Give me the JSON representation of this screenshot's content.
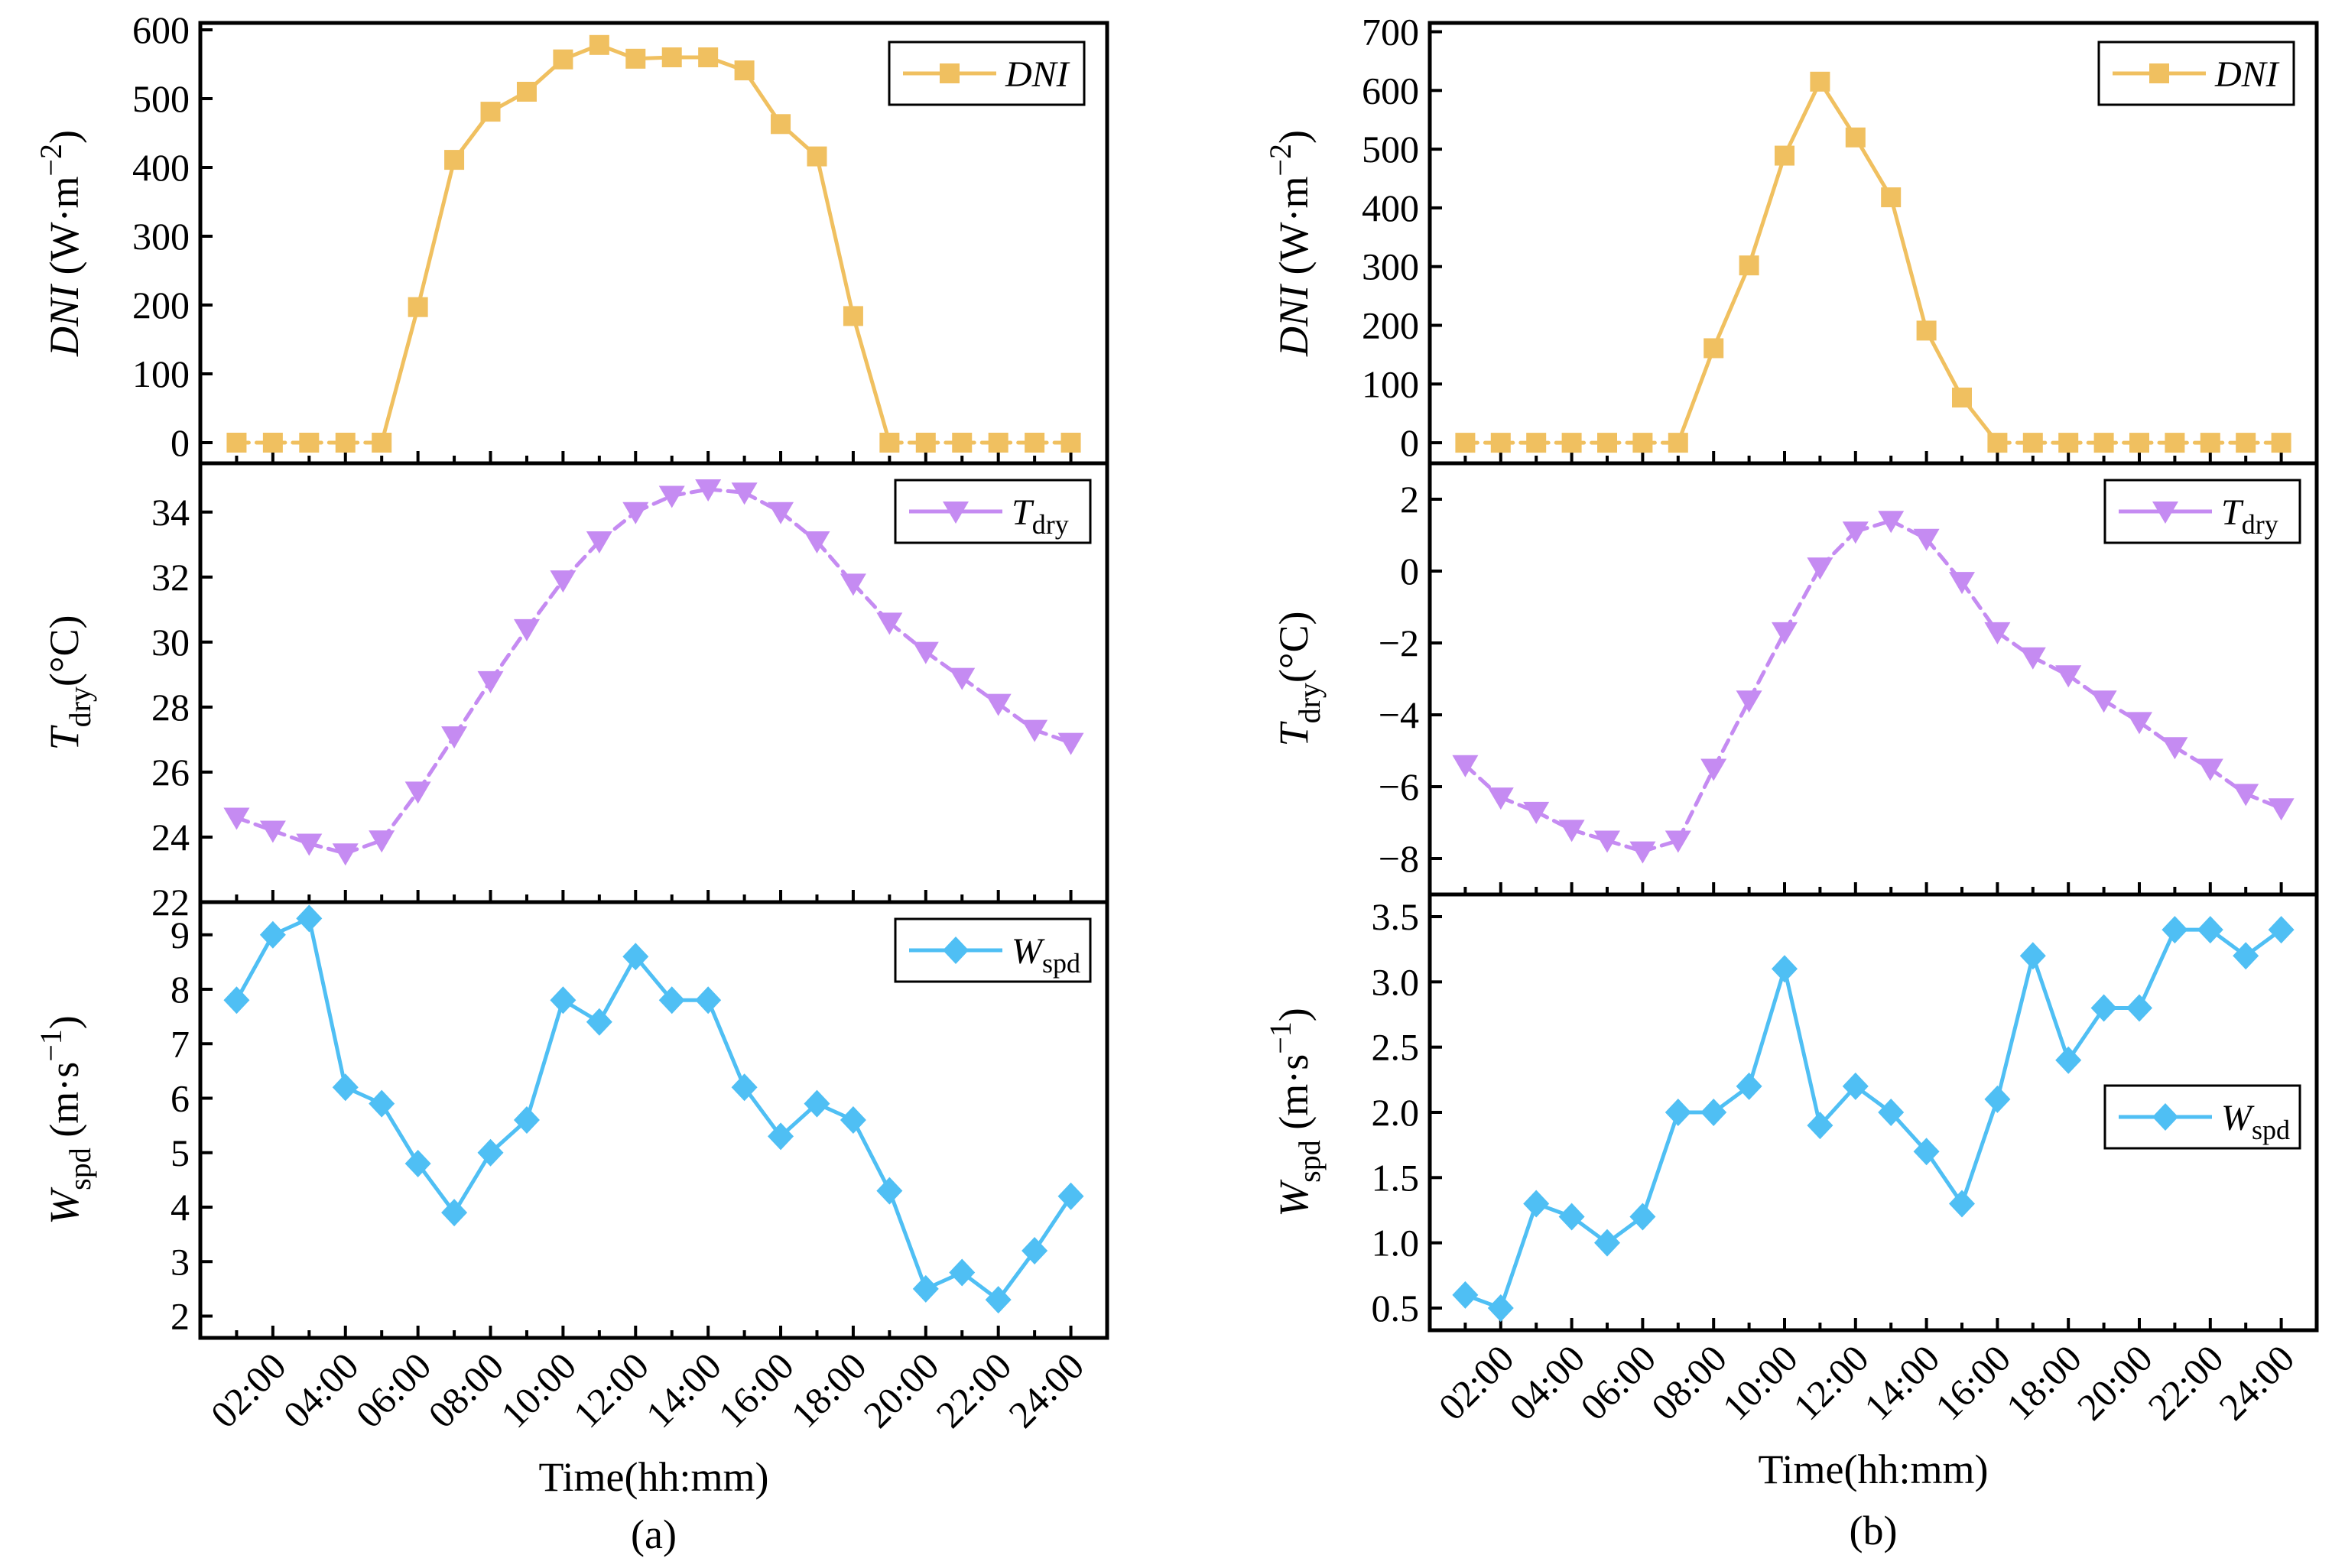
{
  "figure": {
    "x_label": "Time(hh:mm)",
    "x_tick_labels": [
      "02:00",
      "04:00",
      "06:00",
      "08:00",
      "10:00",
      "12:00",
      "14:00",
      "16:00",
      "18:00",
      "20:00",
      "22:00",
      "24:00"
    ]
  },
  "colors": {
    "dni": "#F0C060",
    "tdry": "#C58BF2",
    "wspd": "#4FBFF4"
  },
  "chart_data": [
    {
      "caption": "(a)",
      "type": "line",
      "x": [
        1,
        2,
        3,
        4,
        5,
        6,
        7,
        8,
        9,
        10,
        11,
        12,
        13,
        14,
        15,
        16,
        17,
        18,
        19,
        20,
        21,
        22,
        23,
        24
      ],
      "xlim": [
        0,
        25
      ],
      "panels": [
        {
          "key": "dni",
          "ylabel": "DNI (W·m−2)",
          "ylim": [
            -30,
            610
          ],
          "yticks": [
            0,
            100,
            200,
            300,
            400,
            500,
            600
          ],
          "legend": "DNI",
          "legend_position": "top-right",
          "marker": "square",
          "values": [
            0,
            0,
            0,
            0,
            0,
            197,
            411,
            481,
            510,
            557,
            578,
            558,
            560,
            560,
            541,
            463,
            416,
            184,
            0,
            0,
            0,
            0,
            0,
            0
          ]
        },
        {
          "key": "tdry",
          "ylabel": "Tdry(°C)",
          "ylim": [
            22,
            35.5
          ],
          "yticks": [
            22,
            24,
            26,
            28,
            30,
            32,
            34
          ],
          "legend": "Tdry",
          "legend_position": "top-right",
          "marker": "triangle-down",
          "values": [
            24.6,
            24.2,
            23.8,
            23.5,
            23.9,
            25.4,
            27.1,
            28.8,
            30.4,
            31.9,
            33.1,
            34.0,
            34.5,
            34.7,
            34.6,
            34.0,
            33.1,
            31.8,
            30.6,
            29.7,
            28.9,
            28.1,
            27.3,
            26.9
          ]
        },
        {
          "key": "wspd",
          "ylabel": "Wspd (m·s−1)",
          "ylim": [
            1.6,
            9.6
          ],
          "yticks": [
            2,
            3,
            4,
            5,
            6,
            7,
            8,
            9
          ],
          "legend": "Wspd",
          "legend_position": "top-right",
          "marker": "diamond",
          "values": [
            7.8,
            9.0,
            9.3,
            6.2,
            5.9,
            4.8,
            3.9,
            5.0,
            5.6,
            7.8,
            7.4,
            8.6,
            7.8,
            7.8,
            6.2,
            5.3,
            5.9,
            5.6,
            4.3,
            2.5,
            2.8,
            2.3,
            3.2,
            4.2
          ]
        }
      ]
    },
    {
      "caption": "(b)",
      "type": "line",
      "x": [
        1,
        2,
        3,
        4,
        5,
        6,
        7,
        8,
        9,
        10,
        11,
        12,
        13,
        14,
        15,
        16,
        17,
        18,
        19,
        20,
        21,
        22,
        23,
        24
      ],
      "xlim": [
        0,
        25
      ],
      "panels": [
        {
          "key": "dni",
          "ylabel": "DNI (W·m−2)",
          "ylim": [
            -35,
            715
          ],
          "yticks": [
            0,
            100,
            200,
            300,
            400,
            500,
            600,
            700
          ],
          "legend": "DNI",
          "legend_position": "top-right",
          "marker": "square",
          "values": [
            0,
            0,
            0,
            0,
            0,
            0,
            0,
            161,
            302,
            489,
            615,
            520,
            418,
            191,
            77,
            0,
            0,
            0,
            0,
            0,
            0,
            0,
            0,
            0
          ]
        },
        {
          "key": "tdry",
          "ylabel": "Tdry(°C)",
          "ylim": [
            -9,
            3
          ],
          "yticks": [
            -8,
            -6,
            -4,
            -2,
            0,
            2
          ],
          "legend": "Tdry",
          "legend_position": "top-right",
          "marker": "triangle-down",
          "values": [
            -5.4,
            -6.3,
            -6.7,
            -7.2,
            -7.5,
            -7.8,
            -7.5,
            -5.5,
            -3.6,
            -1.7,
            0.1,
            1.1,
            1.4,
            0.9,
            -0.3,
            -1.7,
            -2.4,
            -2.9,
            -3.6,
            -4.2,
            -4.9,
            -5.5,
            -6.2,
            -6.6
          ]
        },
        {
          "key": "wspd",
          "ylabel": "Wspd (m·s−1)",
          "ylim": [
            0.33,
            3.67
          ],
          "yticks": [
            0.5,
            1.0,
            1.5,
            2.0,
            2.5,
            3.0,
            3.5
          ],
          "legend": "Wspd",
          "legend_position": "middle-right",
          "marker": "diamond",
          "values": [
            0.6,
            0.5,
            1.3,
            1.2,
            1.0,
            1.2,
            2.0,
            2.0,
            2.2,
            3.1,
            1.9,
            2.2,
            2.0,
            1.7,
            1.3,
            2.1,
            3.2,
            2.4,
            2.8,
            2.8,
            3.4,
            3.4,
            3.2,
            3.4
          ]
        }
      ]
    }
  ]
}
